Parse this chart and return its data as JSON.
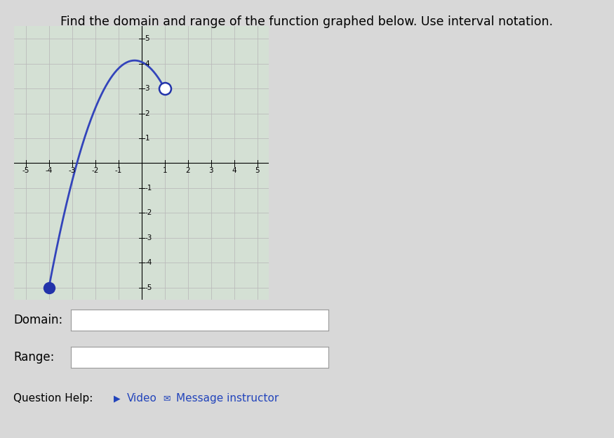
{
  "title": "Find the domain and range of the function graphed below. Use interval notation.",
  "title_fontsize": 12.5,
  "graph_xlim": [
    -5.5,
    5.5
  ],
  "graph_ylim": [
    -5.5,
    5.5
  ],
  "xticks": [
    -5,
    -4,
    -3,
    -2,
    -1,
    1,
    2,
    3,
    4,
    5
  ],
  "yticks": [
    -5,
    -4,
    -3,
    -2,
    -1,
    1,
    2,
    3,
    4,
    5
  ],
  "grid_color": "#bbbbbb",
  "grid_linewidth": 0.6,
  "curve_color": "#3344bb",
  "curve_linewidth": 2.0,
  "closed_point": [
    -4,
    -5
  ],
  "open_point": [
    1,
    3
  ],
  "closed_point_color": "#2233aa",
  "open_point_facecolor": "white",
  "open_point_edgecolor": "#2233aa",
  "point_size": 60,
  "bg_color": "#d8d8d8",
  "graph_bg_color": "#d4e0d4",
  "domain_label": "Domain:",
  "range_label": "Range:",
  "question_help_text": "Question Help:",
  "video_text": "Video",
  "message_text": "Message instructor",
  "x_peak": -0.1,
  "y_peak": 4.1
}
